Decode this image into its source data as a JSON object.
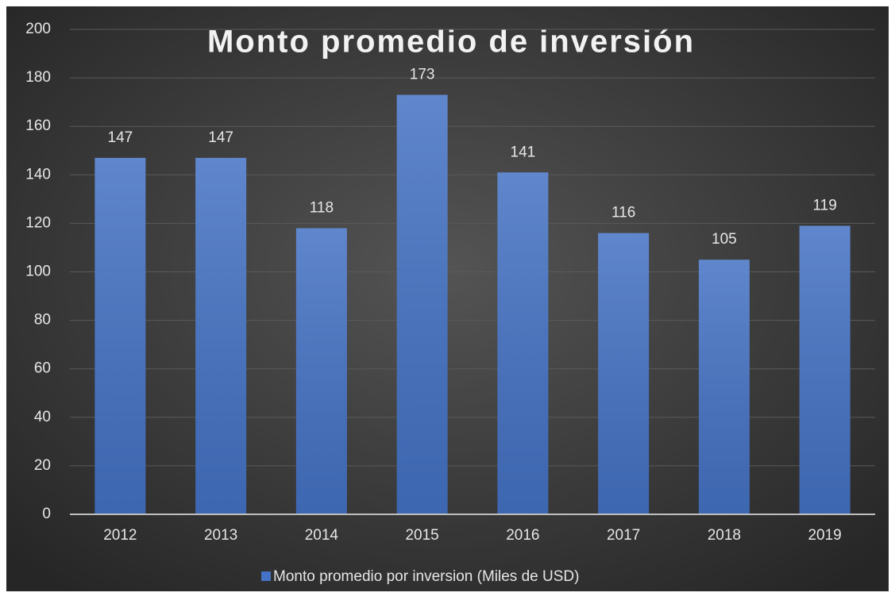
{
  "chart_data": {
    "type": "bar",
    "title": "Monto promedio de inversión",
    "categories": [
      "2012",
      "2013",
      "2014",
      "2015",
      "2016",
      "2017",
      "2018",
      "2019"
    ],
    "series": [
      {
        "name": "Monto promedio por inversion (Miles de USD)",
        "color": "#4472c4",
        "values": [
          147,
          147,
          118,
          173,
          141,
          116,
          105,
          119
        ]
      }
    ],
    "ylim": [
      0,
      200
    ],
    "yticks": [
      0,
      20,
      40,
      60,
      80,
      100,
      120,
      140,
      160,
      180,
      200
    ],
    "grid": true,
    "legend": "bottom",
    "data_labels": true
  }
}
